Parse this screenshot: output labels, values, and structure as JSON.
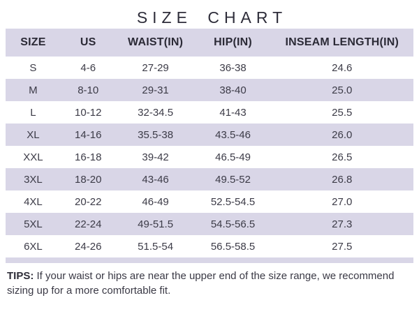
{
  "title": "SIZE CHART",
  "chart_data": {
    "type": "table",
    "title": "SIZE CHART",
    "columns": [
      "SIZE",
      "US",
      "WAIST(IN)",
      "HIP(IN)",
      "INSEAM LENGTH(IN)"
    ],
    "rows": [
      [
        "S",
        "4-6",
        "27-29",
        "36-38",
        "24.6"
      ],
      [
        "M",
        "8-10",
        "29-31",
        "38-40",
        "25.0"
      ],
      [
        "L",
        "10-12",
        "32-34.5",
        "41-43",
        "25.5"
      ],
      [
        "XL",
        "14-16",
        "35.5-38",
        "43.5-46",
        "26.0"
      ],
      [
        "XXL",
        "16-18",
        "39-42",
        "46.5-49",
        "26.5"
      ],
      [
        "3XL",
        "18-20",
        "43-46",
        "49.5-52",
        "26.8"
      ],
      [
        "4XL",
        "20-22",
        "46-49",
        "52.5-54.5",
        "27.0"
      ],
      [
        "5XL",
        "22-24",
        "49-51.5",
        "54.5-56.5",
        "27.3"
      ],
      [
        "6XL",
        "24-26",
        "51.5-54",
        "56.5-58.5",
        "27.5"
      ]
    ],
    "layout_hints": {
      "alternating_row_highlight": "even data rows highlighted",
      "header_background": "highlighted"
    }
  },
  "tips": {
    "label": "TIPS:",
    "text": "If your waist or hips are near the upper end of the size range, we recommend sizing up for a more comfortable fit."
  },
  "colors": {
    "row_highlight": "#d9d6e7",
    "header_bg": "#d9d6e7",
    "text_dark": "#2b2a36",
    "text_body": "#3c3b47"
  }
}
